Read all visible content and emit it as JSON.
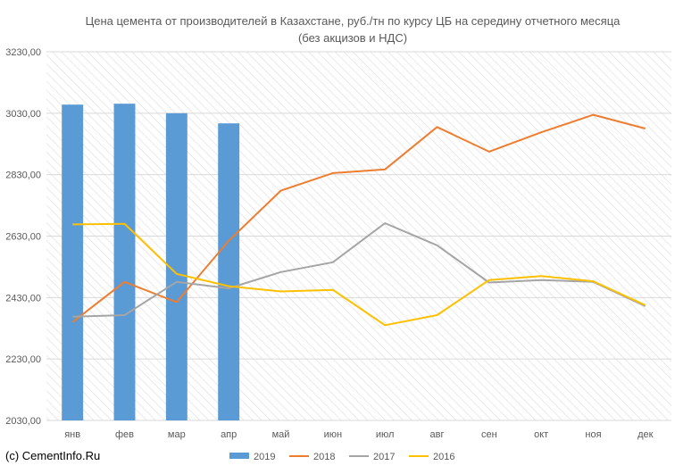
{
  "chart_data": {
    "type": "bar",
    "title": "Цена цемента от производителей в Казахстане, руб./тн по курсу ЦБ на середину отчетного месяца (без акцизов и НДС)",
    "categories": [
      "янв",
      "фев",
      "мар",
      "апр",
      "май",
      "июн",
      "июл",
      "авг",
      "сен",
      "окт",
      "ноя",
      "дек"
    ],
    "ylim": [
      2030,
      3230
    ],
    "yticks": [
      "2030,00",
      "2230,00",
      "2430,00",
      "2630,00",
      "2830,00",
      "3030,00",
      "3230,00"
    ],
    "grid": true,
    "legend_position": "bottom",
    "series": [
      {
        "name": "2019",
        "type": "bar",
        "color": "#5B9BD5",
        "values": [
          3058,
          3061,
          3030,
          2997,
          null,
          null,
          null,
          null,
          null,
          null,
          null,
          null
        ]
      },
      {
        "name": "2018",
        "type": "line",
        "color": "#ED7D31",
        "values": [
          2350,
          2481,
          2415,
          2615,
          2778,
          2835,
          2847,
          2985,
          2905,
          2968,
          3025,
          2980
        ]
      },
      {
        "name": "2017",
        "type": "line",
        "color": "#A5A5A5",
        "values": [
          2368,
          2373,
          2481,
          2460,
          2513,
          2545,
          2672,
          2600,
          2479,
          2487,
          2481,
          2402
        ]
      },
      {
        "name": "2016",
        "type": "line",
        "color": "#FFC000",
        "values": [
          2668,
          2670,
          2507,
          2467,
          2450,
          2455,
          2340,
          2373,
          2487,
          2500,
          2483,
          2405
        ]
      }
    ]
  },
  "credit": "(c) CementInfo.Ru"
}
